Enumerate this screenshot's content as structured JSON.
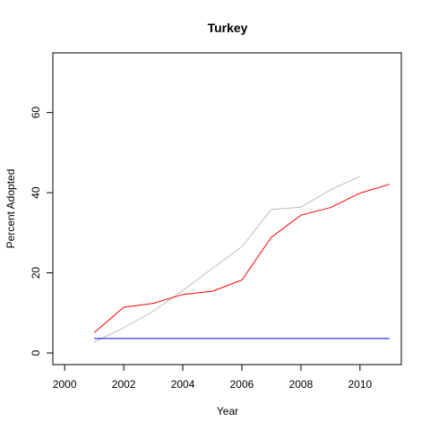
{
  "chart_data": {
    "type": "line",
    "title": "Turkey",
    "xlabel": "Year",
    "ylabel": "Percent Adopted",
    "xlim": [
      1999.6,
      2011.4
    ],
    "ylim": [
      -2.9,
      74.9
    ],
    "x_ticks": [
      2000,
      2002,
      2004,
      2006,
      2008,
      2010
    ],
    "y_ticks": [
      0,
      20,
      40,
      60
    ],
    "grid": false,
    "legend": "none",
    "series": [
      {
        "color": "#bebebe",
        "x": [
          2001,
          2002,
          2003,
          2004,
          2005,
          2006,
          2007,
          2008,
          2009,
          2010
        ],
        "values": [
          2.7,
          6.3,
          10.4,
          15.6,
          21.1,
          26.5,
          35.8,
          36.4,
          40.7,
          44.1
        ]
      },
      {
        "color": "#ff0000",
        "x": [
          2001,
          2002,
          2003,
          2004,
          2005,
          2006,
          2007,
          2008,
          2009,
          2010,
          2011
        ],
        "values": [
          5.1,
          11.4,
          12.4,
          14.6,
          15.4,
          18.2,
          28.9,
          34.4,
          36.3,
          39.9,
          42.1
        ]
      },
      {
        "color": "#0000ff",
        "x": [
          2001,
          2011
        ],
        "values": [
          3.6,
          3.6
        ]
      }
    ]
  }
}
